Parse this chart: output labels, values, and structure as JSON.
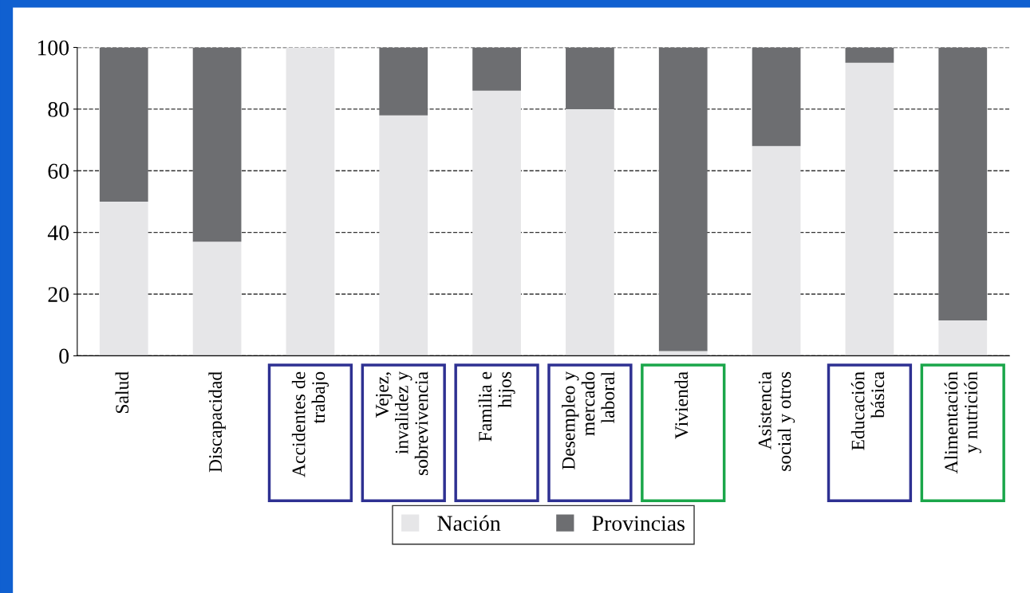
{
  "chart_data": {
    "type": "bar",
    "stacked": true,
    "categories": [
      "Salud",
      "Discapacidad",
      "Accidentes de\ntrabajo",
      "Vejez,\ninvalidez y\nsobrevivencia",
      "Familia e\nhijos",
      "Desempleo y\nmercado\nlaboral",
      "Vivienda",
      "Asistencia\nsocial y otros",
      "Educación\nbásica",
      "Alimentación\ny nutrición"
    ],
    "series": [
      {
        "name": "Nación",
        "color": "#e6e6e8",
        "values": [
          50,
          37,
          100,
          78,
          86,
          80,
          1.5,
          68,
          95,
          11.5
        ]
      },
      {
        "name": "Provincias",
        "color": "#6d6e71",
        "values": [
          50,
          63,
          0,
          22,
          14,
          20,
          98.5,
          32,
          5,
          88.5
        ]
      }
    ],
    "ylim": [
      0,
      100
    ],
    "yticks": [
      0,
      20,
      40,
      60,
      80,
      100
    ],
    "grid": "y",
    "legend": "bottom"
  }
}
